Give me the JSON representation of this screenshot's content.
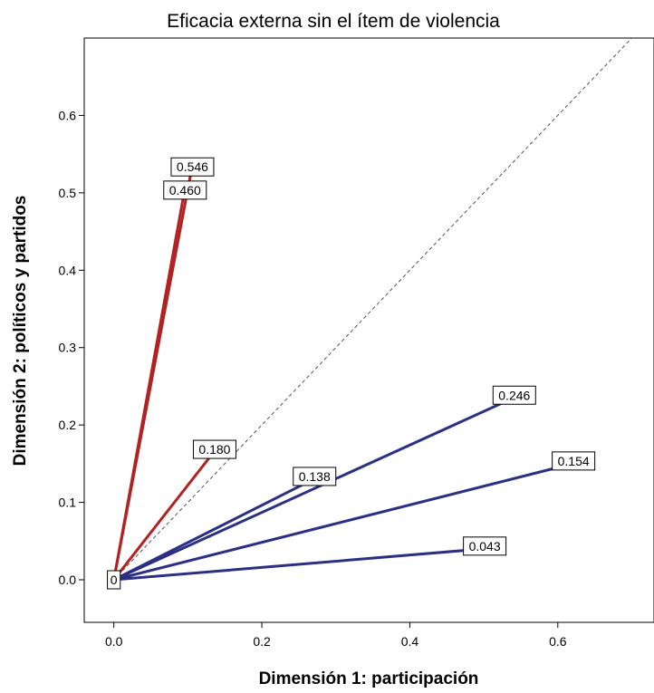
{
  "chart_data": {
    "type": "line",
    "title": "Eficacia externa sin el ítem de violencia",
    "xlabel": "Dimensión 1:  participación",
    "ylabel": "Dimensión 2: políticos y partidos",
    "xlim": [
      -0.04,
      0.73
    ],
    "ylim": [
      -0.055,
      0.7
    ],
    "x_ticks": [
      "0.0",
      "0.2",
      "0.4",
      "0.6"
    ],
    "y_ticks": [
      "0.0",
      "0.1",
      "0.2",
      "0.3",
      "0.4",
      "0.5",
      "0.6"
    ],
    "reference_line": {
      "style": "dashed",
      "from": [
        0,
        0
      ],
      "to": [
        0.73,
        0.73
      ]
    },
    "colors": {
      "red": "#b22222",
      "blue": "#2b2f85",
      "reference": "#555555"
    },
    "origin_label": "0",
    "series": [
      {
        "label": "0.546",
        "color_key": "red",
        "end": [
          0.105,
          0.53
        ]
      },
      {
        "label": "0.460",
        "color_key": "red",
        "end": [
          0.095,
          0.5
        ]
      },
      {
        "label": "0.180",
        "color_key": "red",
        "end": [
          0.135,
          0.165
        ]
      },
      {
        "label": "0.246",
        "color_key": "blue",
        "end": [
          0.54,
          0.235
        ]
      },
      {
        "label": "0.138",
        "color_key": "blue",
        "end": [
          0.27,
          0.13
        ]
      },
      {
        "label": "0.154",
        "color_key": "blue",
        "end": [
          0.62,
          0.15
        ]
      },
      {
        "label": "0.043",
        "color_key": "blue",
        "end": [
          0.5,
          0.04
        ]
      }
    ]
  }
}
